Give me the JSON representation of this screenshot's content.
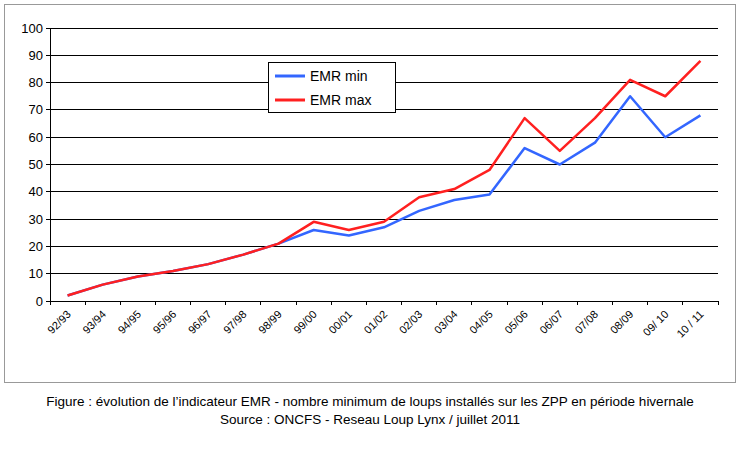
{
  "chart_data": {
    "type": "line",
    "title": "Figure : évolution de l’indicateur EMR - nombre minimum de loups installés sur les ZPP en période hivernale",
    "subtitle": "Source : ONCFS - Reseau Loup Lynx / juillet 2011",
    "categories": [
      "92/93",
      "93/94",
      "94/95",
      "95/96",
      "96/97",
      "97/98",
      "98/99",
      "99/00",
      "00/01",
      "01/02",
      "02/03",
      "03/04",
      "04/05",
      "05/06",
      "06/07",
      "07/08",
      "08/09",
      "09/ 10",
      "10 / 11"
    ],
    "series": [
      {
        "name": "EMR min",
        "color": "#3366ff",
        "values": [
          2,
          6,
          9,
          11,
          13.5,
          17,
          21,
          26,
          24,
          27,
          33,
          37,
          39,
          56,
          50,
          58,
          75,
          60,
          68
        ]
      },
      {
        "name": "EMR max",
        "color": "#ff2020",
        "values": [
          2,
          6,
          9,
          11,
          13.5,
          17,
          21,
          29,
          26,
          29,
          38,
          41,
          48,
          67,
          55,
          67,
          81,
          75,
          88
        ]
      }
    ],
    "ylim": [
      0,
      100
    ],
    "yticks": [
      0,
      10,
      20,
      30,
      40,
      50,
      60,
      70,
      80,
      90,
      100
    ],
    "grid": true,
    "legend": "top"
  }
}
